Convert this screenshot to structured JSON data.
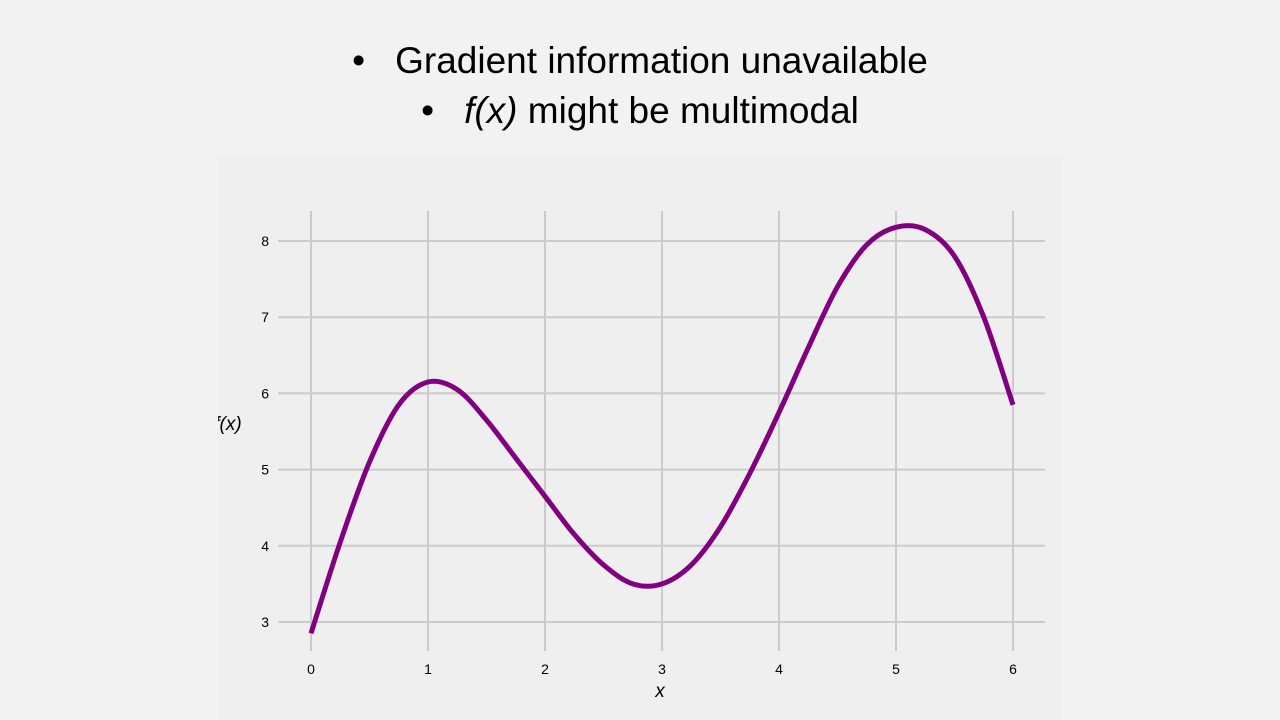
{
  "slide": {
    "bullets": [
      {
        "text": "Gradient information unavailable"
      },
      {
        "italic_part": "f(x)",
        "text": " might be multimodal"
      }
    ],
    "bullet_glyph": "•"
  },
  "chart_data": {
    "type": "line",
    "xlabel": "x",
    "ylabel": "f(x)",
    "xlim": [
      0,
      6
    ],
    "ylim": [
      2.7,
      8.4
    ],
    "xticks": [
      0,
      1,
      2,
      3,
      4,
      5,
      6
    ],
    "yticks": [
      3,
      4,
      5,
      6,
      7,
      8
    ],
    "grid": true,
    "legend": "none",
    "series": [
      {
        "color": "#800080",
        "x": [
          0,
          0.25,
          0.5,
          0.75,
          1.0,
          1.25,
          1.5,
          1.75,
          2.0,
          2.25,
          2.5,
          2.75,
          3.0,
          3.25,
          3.5,
          3.75,
          4.0,
          4.25,
          4.5,
          4.75,
          5.0,
          5.25,
          5.5,
          5.75,
          6.0
        ],
        "y": [
          2.85,
          4.05,
          5.1,
          5.85,
          6.15,
          6.05,
          5.65,
          5.15,
          4.65,
          4.15,
          3.75,
          3.5,
          3.5,
          3.75,
          4.25,
          4.95,
          5.75,
          6.6,
          7.4,
          7.95,
          8.18,
          8.15,
          7.8,
          7.0,
          5.85
        ]
      }
    ]
  }
}
